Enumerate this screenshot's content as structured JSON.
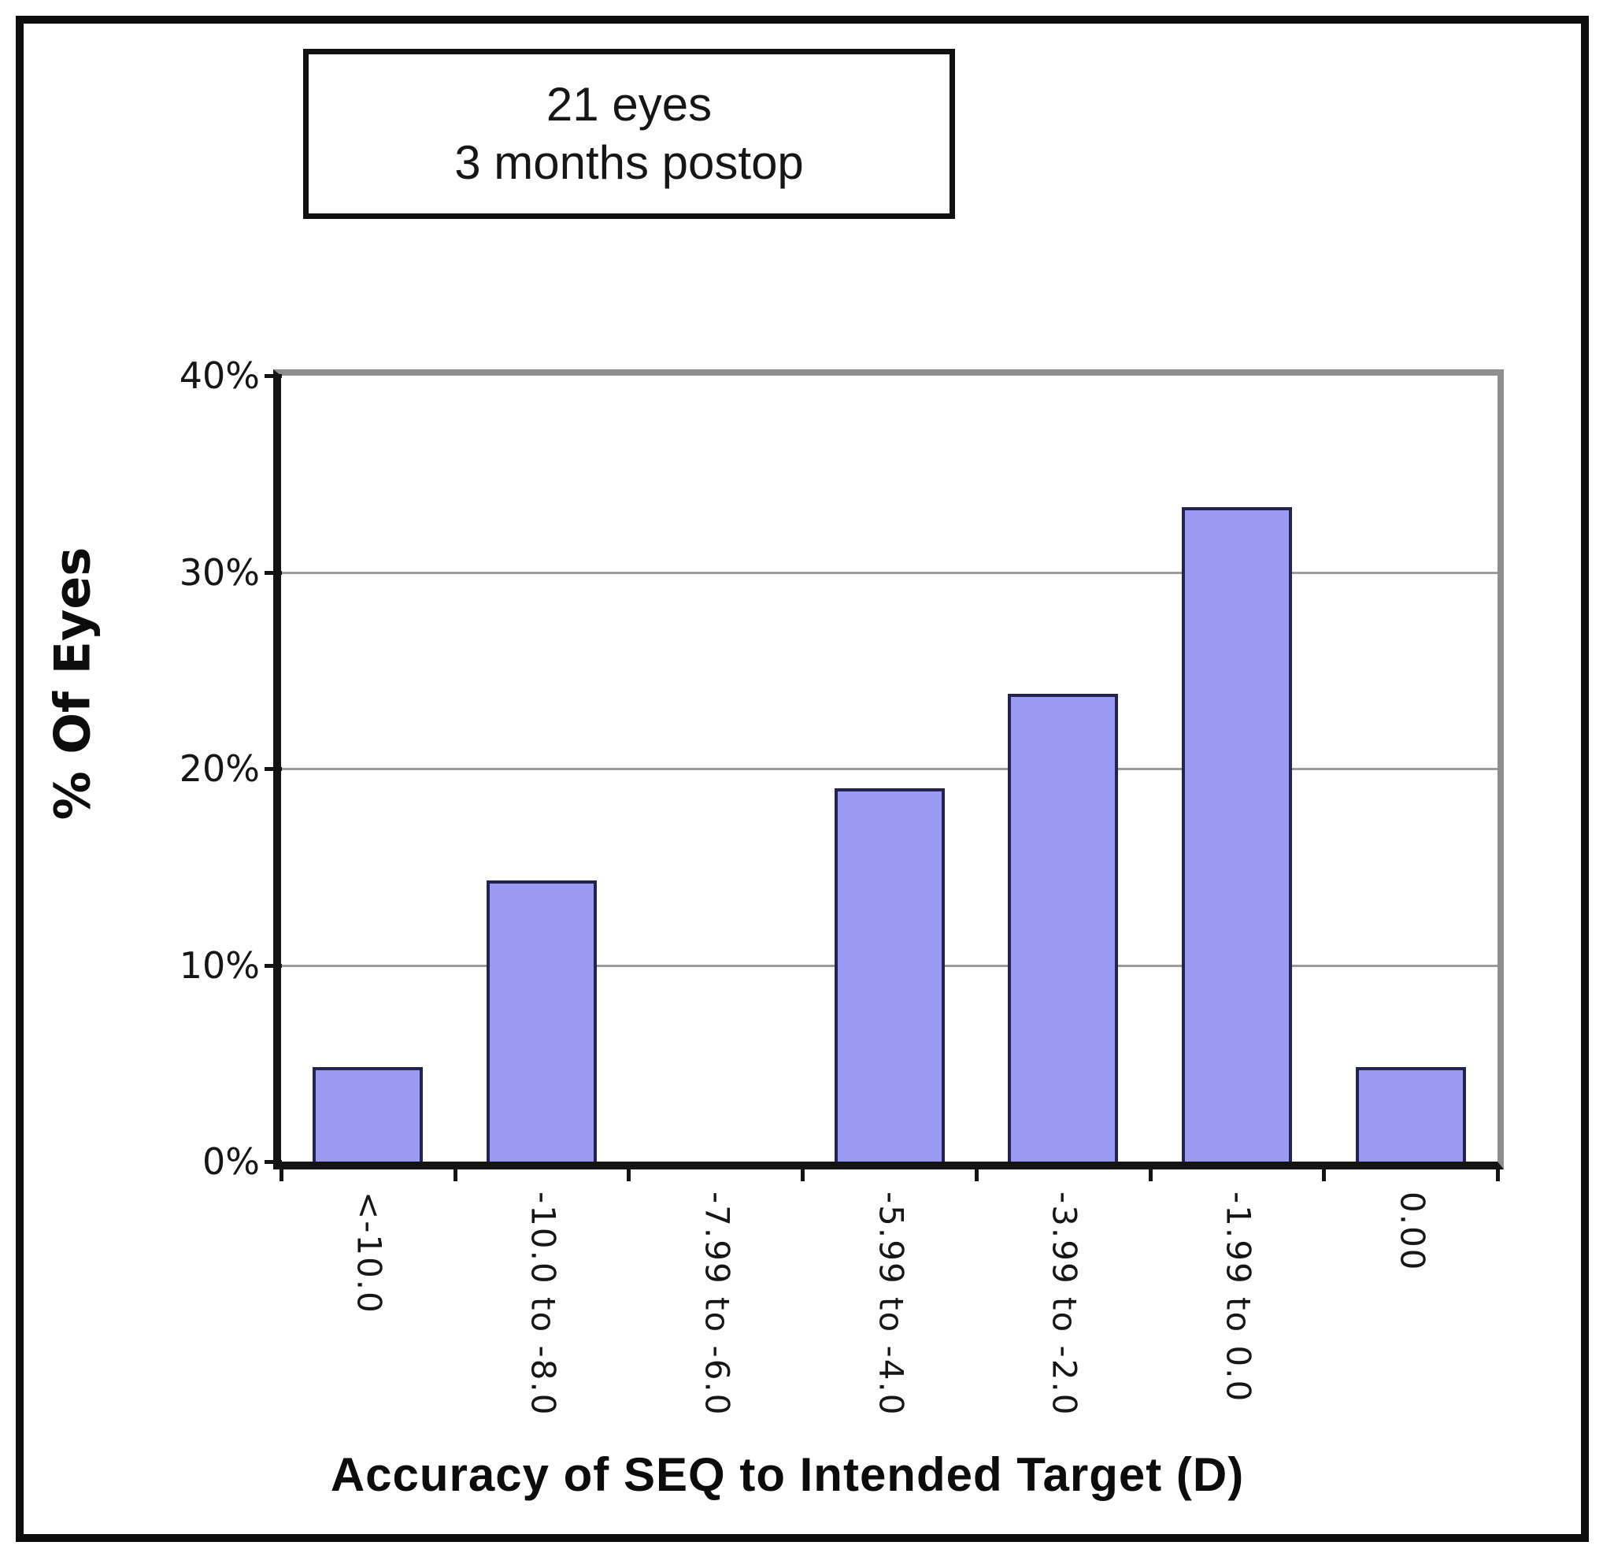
{
  "annotation": {
    "lines": [
      "21 eyes",
      "3 months postop"
    ]
  },
  "chart_data": {
    "type": "bar",
    "title": "",
    "annotation_box": "21 eyes / 3 months postop",
    "categories": [
      "<-10.0",
      "-10.0 to -8.0",
      "-7.99 to -6.0",
      "-5.99 to -4.0",
      "-3.99 to -2.0",
      "-1.99 to 0.0",
      "0.00"
    ],
    "values": [
      4.8,
      14.3,
      0,
      19.0,
      23.8,
      33.3,
      4.8
    ],
    "xlabel": "Accuracy of SEQ to Intended Target (D)",
    "ylabel": "% Of Eyes",
    "ylim": [
      0,
      40
    ],
    "yticks": [
      0,
      10,
      20,
      30,
      40
    ],
    "ytick_labels": [
      "0%",
      "10%",
      "20%",
      "30%",
      "40%"
    ],
    "gridlines": [
      10,
      20,
      30
    ],
    "grid_on": true,
    "legend": "none",
    "colors": {
      "bar_fill": "#9a9af2",
      "bar_border": "#23234f",
      "gridline": "#9b9b9b",
      "plot_top_right_border": "#8f8f8f",
      "axis": "#141414",
      "text": "#161616",
      "frame": "#0d0d0d",
      "background": "#ffffff"
    }
  }
}
